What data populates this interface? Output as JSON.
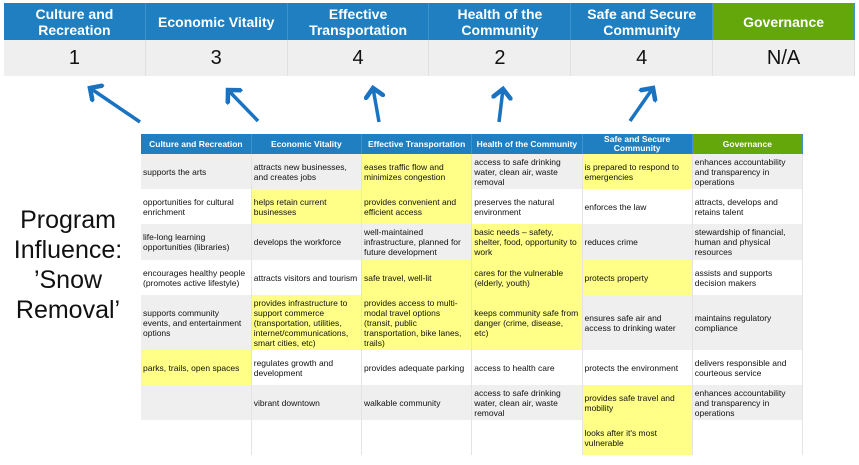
{
  "colors": {
    "header_blue": "#1f7fc1",
    "governance_green": "#64a70b",
    "highlight": "#ffff88",
    "arrow": "#1a73c0"
  },
  "summary": [
    {
      "label": "Culture and Recreation",
      "value": "1"
    },
    {
      "label": "Economic Vitality",
      "value": "3"
    },
    {
      "label": "Effective Transportation",
      "value": "4"
    },
    {
      "label": "Health of the Community",
      "value": "2"
    },
    {
      "label": "Safe and Secure Community",
      "value": "4"
    },
    {
      "label": "Governance",
      "value": "N/A"
    }
  ],
  "program_influence": {
    "line1": "Program",
    "line2": "Influence:",
    "line3": "’Snow",
    "line4": "Removal’"
  },
  "table": {
    "headers": [
      "Culture and Recreation",
      "Economic Vitality",
      "Effective Transportation",
      "Health of the Community",
      "Safe and Secure Community",
      "Governance"
    ],
    "rows": [
      [
        {
          "t": "supports the arts"
        },
        {
          "t": "attracts new businesses, and creates jobs"
        },
        {
          "t": "eases traffic flow and minimizes congestion",
          "h": true
        },
        {
          "t": "access to safe drinking water, clean air, waste removal"
        },
        {
          "t": "is prepared to respond to emergencies",
          "h": true
        },
        {
          "t": "enhances accountability and transparency in operations"
        }
      ],
      [
        {
          "t": "opportunities for cultural enrichment"
        },
        {
          "t": "helps retain current businesses",
          "h": true
        },
        {
          "t": "provides convenient and efficient access",
          "h": true
        },
        {
          "t": "preserves the natural environment"
        },
        {
          "t": "enforces the law"
        },
        {
          "t": "attracts, develops and retains talent"
        }
      ],
      [
        {
          "t": "life-long learning opportunities (libraries)"
        },
        {
          "t": "develops the workforce"
        },
        {
          "t": "well-maintained infrastructure, planned for future development"
        },
        {
          "t": "basic needs – safety, shelter, food, opportunity to work",
          "h": true
        },
        {
          "t": "reduces crime"
        },
        {
          "t": "stewardship of financial, human and physical resources"
        }
      ],
      [
        {
          "t": "encourages healthy people (promotes active lifestyle)"
        },
        {
          "t": "attracts visitors and tourism"
        },
        {
          "t": "safe travel, well-lit",
          "h": true
        },
        {
          "t": "cares for the vulnerable (elderly, youth)",
          "h": true
        },
        {
          "t": "protects property",
          "h": true
        },
        {
          "t": "assists and supports decision makers"
        }
      ],
      [
        {
          "t": "supports community events, and entertainment options"
        },
        {
          "t": "provides infrastructure to support commerce (transportation, utilities, internet/communications, smart cities, etc)",
          "h": true
        },
        {
          "t": "provides access to multi-modal travel options (transit, public transportation, bike lanes, trails)",
          "h": true
        },
        {
          "t": "keeps community safe from danger (crime, disease, etc)",
          "h": true
        },
        {
          "t": "ensures safe air and access to drinking water"
        },
        {
          "t": "maintains regulatory compliance"
        }
      ],
      [
        {
          "t": "parks, trails, open spaces",
          "h": true
        },
        {
          "t": "regulates growth and development"
        },
        {
          "t": "provides adequate parking"
        },
        {
          "t": "access to health care"
        },
        {
          "t": "protects the environment"
        },
        {
          "t": "delivers responsible and courteous service"
        }
      ],
      [
        {
          "t": ""
        },
        {
          "t": "vibrant downtown"
        },
        {
          "t": "walkable community"
        },
        {
          "t": "access to safe drinking water, clean air, waste removal"
        },
        {
          "t": "provides safe travel and mobility",
          "h": true
        },
        {
          "t": "enhances accountability and transparency in operations"
        }
      ],
      [
        {
          "t": ""
        },
        {
          "t": ""
        },
        {
          "t": ""
        },
        {
          "t": ""
        },
        {
          "t": "looks after it's most vulnerable",
          "h": true
        },
        {
          "t": ""
        }
      ]
    ]
  }
}
